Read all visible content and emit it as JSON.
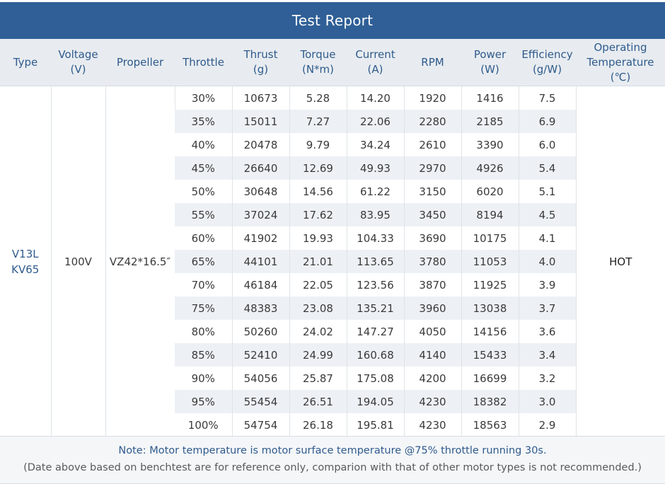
{
  "title": "Test Report",
  "headers": {
    "type": [
      "Type"
    ],
    "voltage": [
      "Voltage",
      "(V)"
    ],
    "propeller": [
      "Propeller"
    ],
    "throttle": [
      "Throttle"
    ],
    "thrust": [
      "Thrust",
      "(g)"
    ],
    "torque": [
      "Torque",
      "(N*m)"
    ],
    "current": [
      "Current",
      "(A)"
    ],
    "rpm": [
      "RPM"
    ],
    "power": [
      "Power",
      "(W)"
    ],
    "efficiency": [
      "Efficiency",
      "(g/W)"
    ],
    "temperature": [
      "Operating",
      "Temperature",
      "(℃)"
    ]
  },
  "motor": {
    "type_line1": "V13L",
    "type_line2": "KV65",
    "voltage": "100V",
    "propeller": "VZ42*16.5″",
    "temperature": "HOT"
  },
  "rows": [
    [
      "30%",
      "10673",
      "5.28",
      "14.20",
      "1920",
      "1416",
      "7.5"
    ],
    [
      "35%",
      "15011",
      "7.27",
      "22.06",
      "2280",
      "2185",
      "6.9"
    ],
    [
      "40%",
      "20478",
      "9.79",
      "34.24",
      "2610",
      "3390",
      "6.0"
    ],
    [
      "45%",
      "26640",
      "12.69",
      "49.93",
      "2970",
      "4926",
      "5.4"
    ],
    [
      "50%",
      "30648",
      "14.56",
      "61.22",
      "3150",
      "6020",
      "5.1"
    ],
    [
      "55%",
      "37024",
      "17.62",
      "83.95",
      "3450",
      "8194",
      "4.5"
    ],
    [
      "60%",
      "41902",
      "19.93",
      "104.33",
      "3690",
      "10175",
      "4.1"
    ],
    [
      "65%",
      "44101",
      "21.01",
      "113.65",
      "3780",
      "11053",
      "4.0"
    ],
    [
      "70%",
      "46184",
      "22.05",
      "123.56",
      "3870",
      "11925",
      "3.9"
    ],
    [
      "75%",
      "48383",
      "23.08",
      "135.21",
      "3960",
      "13038",
      "3.7"
    ],
    [
      "80%",
      "50260",
      "24.02",
      "147.27",
      "4050",
      "14156",
      "3.6"
    ],
    [
      "85%",
      "52410",
      "24.99",
      "160.68",
      "4140",
      "15433",
      "3.4"
    ],
    [
      "90%",
      "54056",
      "25.87",
      "175.08",
      "4200",
      "16699",
      "3.2"
    ],
    [
      "95%",
      "55454",
      "26.51",
      "194.05",
      "4230",
      "18382",
      "3.0"
    ],
    [
      "100%",
      "54754",
      "26.18",
      "195.81",
      "4230",
      "18563",
      "2.9"
    ]
  ],
  "note": {
    "line1": "Note: Motor temperature is motor surface temperature @75% throttle running 30s.",
    "line2": "(Date above based on benchtest are for reference only, comparion with that of other motor types is not recommended.)"
  }
}
